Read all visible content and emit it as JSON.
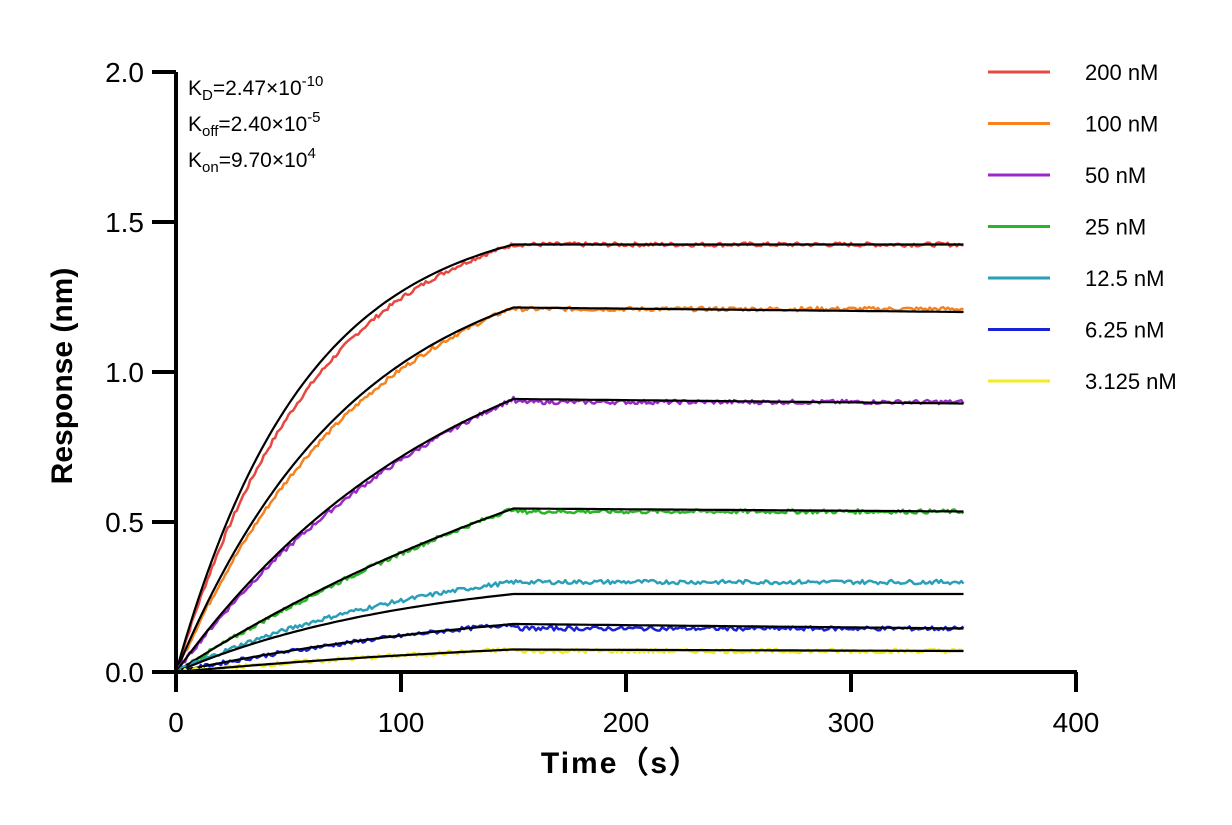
{
  "chart_data": {
    "type": "line",
    "xlabel": "Time（s）",
    "ylabel": "Response (nm)",
    "xlim": [
      0,
      400
    ],
    "ylim": [
      0,
      2.0
    ],
    "x_ticks": [
      "0",
      "100",
      "200",
      "300",
      "400"
    ],
    "y_ticks": [
      "0.0",
      "0.5",
      "1.0",
      "1.5",
      "2.0"
    ],
    "grid": false,
    "legend_position": "top-right",
    "annotations": {
      "kd": {
        "name": "K",
        "sub": "D",
        "value": "=2.47×10",
        "exp": "-10"
      },
      "koff": {
        "name": "K",
        "sub": "off",
        "value": "=2.40×10",
        "exp": "-5"
      },
      "kon": {
        "name": "K",
        "sub": "on",
        "value": "=9.70×10",
        "exp": "4"
      }
    },
    "fit_color": "#000000",
    "association_end_s": 150,
    "end_s": 350,
    "series": [
      {
        "name": "200 nM",
        "color": "#e8483f",
        "fit_plateau": 1.425,
        "fit_end": 1.425,
        "data_end": 1.425,
        "curvature": 2.6
      },
      {
        "name": "100 nM",
        "color": "#f5821f",
        "fit_plateau": 1.215,
        "fit_end": 1.2,
        "data_end": 1.21,
        "curvature": 1.9
      },
      {
        "name": "50 nM",
        "color": "#9b27c9",
        "fit_plateau": 0.91,
        "fit_end": 0.895,
        "data_end": 0.9,
        "curvature": 1.2
      },
      {
        "name": "25 nM",
        "color": "#29b524",
        "fit_plateau": 0.545,
        "fit_end": 0.535,
        "data_end": 0.535,
        "curvature": 0.6
      },
      {
        "name": "12.5 nM",
        "color": "#2a9fb8",
        "fit_plateau": 0.26,
        "fit_end": 0.26,
        "data_end": 0.3,
        "curvature": 1.4
      },
      {
        "name": "6.25 nM",
        "color": "#1a23d4",
        "fit_plateau": 0.16,
        "fit_end": 0.145,
        "data_end": 0.145,
        "curvature": 0.9
      },
      {
        "name": "3.125 nM",
        "color": "#f3ea22",
        "fit_plateau": 0.075,
        "fit_end": 0.07,
        "data_end": 0.07,
        "curvature": 0.7
      }
    ]
  }
}
